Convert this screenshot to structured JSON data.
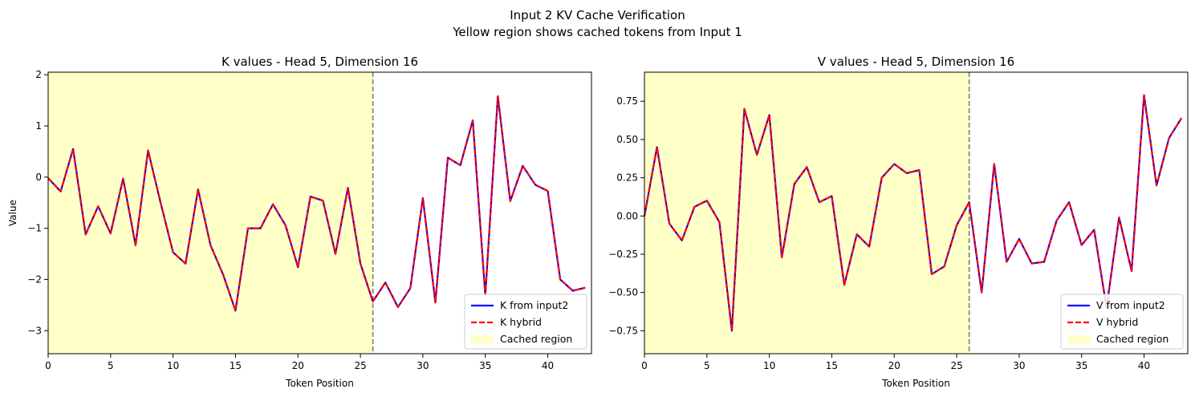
{
  "figure": {
    "suptitle_line1": "Input 2 KV Cache Verification",
    "suptitle_line2": "Yellow region shows cached tokens from Input 1"
  },
  "chart_data": [
    {
      "type": "line",
      "title": "K values - Head 5, Dimension 16",
      "xlabel": "Token Position",
      "ylabel": "Value",
      "xlim": [
        0,
        43.5
      ],
      "ylim": [
        -3.45,
        2.05
      ],
      "xticks": [
        0,
        5,
        10,
        15,
        20,
        25,
        30,
        35,
        40
      ],
      "yticks": [
        2,
        1,
        0,
        -1,
        -2,
        -3
      ],
      "cached_region": [
        0,
        26
      ],
      "cache_boundary": 26,
      "grid": false,
      "legend_position": "lower-right",
      "x": [
        0,
        1,
        2,
        3,
        4,
        5,
        6,
        7,
        8,
        9,
        10,
        11,
        12,
        13,
        14,
        15,
        16,
        17,
        18,
        19,
        20,
        21,
        22,
        23,
        24,
        25,
        26,
        27,
        28,
        29,
        30,
        31,
        32,
        33,
        34,
        35,
        36,
        37,
        38,
        39,
        40,
        41,
        42,
        43
      ],
      "series": [
        {
          "name": "K from input2",
          "color": "#0000ff",
          "style": "solid",
          "values": [
            -0.02,
            -0.28,
            0.55,
            -1.12,
            -0.57,
            -1.1,
            -0.03,
            -1.33,
            0.52,
            -0.5,
            -1.47,
            -1.69,
            -0.24,
            -1.33,
            -1.9,
            -2.61,
            -1.0,
            -1.0,
            -0.53,
            -0.94,
            -1.76,
            -0.38,
            -0.46,
            -1.5,
            -0.21,
            -1.69,
            -2.43,
            -2.06,
            -2.54,
            -2.17,
            -0.41,
            -2.45,
            0.38,
            0.23,
            1.11,
            -2.31,
            1.58,
            -0.47,
            0.22,
            -0.15,
            -0.27,
            -2.0,
            -2.22,
            -2.16
          ]
        },
        {
          "name": "K hybrid",
          "color": "#ff0000",
          "style": "dashed",
          "values": [
            -0.02,
            -0.28,
            0.55,
            -1.12,
            -0.57,
            -1.1,
            -0.03,
            -1.33,
            0.52,
            -0.5,
            -1.47,
            -1.69,
            -0.24,
            -1.33,
            -1.9,
            -2.61,
            -1.0,
            -1.0,
            -0.53,
            -0.94,
            -1.76,
            -0.38,
            -0.46,
            -1.5,
            -0.21,
            -1.69,
            -2.43,
            -2.06,
            -2.54,
            -2.17,
            -0.41,
            -2.45,
            0.38,
            0.23,
            1.11,
            -2.31,
            1.58,
            -0.47,
            0.22,
            -0.15,
            -0.27,
            -2.0,
            -2.22,
            -2.16
          ]
        }
      ],
      "legend": [
        "K from input2",
        "K hybrid",
        "Cached region"
      ]
    },
    {
      "type": "line",
      "title": "V values - Head 5, Dimension 16",
      "xlabel": "Token Position",
      "ylabel": "",
      "xlim": [
        0,
        43.5
      ],
      "ylim": [
        -0.9,
        0.94
      ],
      "xticks": [
        0,
        5,
        10,
        15,
        20,
        25,
        30,
        35,
        40
      ],
      "yticks": [
        0.75,
        0.5,
        0.25,
        0.0,
        -0.25,
        -0.5,
        -0.75
      ],
      "cached_region": [
        0,
        26
      ],
      "cache_boundary": 26,
      "grid": false,
      "legend_position": "lower-right",
      "x": [
        0,
        1,
        2,
        3,
        4,
        5,
        6,
        7,
        8,
        9,
        10,
        11,
        12,
        13,
        14,
        15,
        16,
        17,
        18,
        19,
        20,
        21,
        22,
        23,
        24,
        25,
        26,
        27,
        28,
        29,
        30,
        31,
        32,
        33,
        34,
        35,
        36,
        37,
        38,
        39,
        40,
        41,
        42,
        43
      ],
      "series": [
        {
          "name": "V from input2",
          "color": "#0000ff",
          "style": "solid",
          "values": [
            0.0,
            0.45,
            -0.05,
            -0.16,
            0.06,
            0.1,
            -0.04,
            -0.75,
            0.7,
            0.4,
            0.66,
            -0.27,
            0.21,
            0.32,
            0.09,
            0.13,
            -0.45,
            -0.12,
            -0.2,
            0.25,
            0.34,
            0.28,
            0.3,
            -0.38,
            -0.33,
            -0.06,
            0.09,
            -0.5,
            0.34,
            -0.3,
            -0.15,
            -0.31,
            -0.3,
            -0.03,
            0.09,
            -0.19,
            -0.09,
            -0.6,
            -0.01,
            -0.36,
            0.79,
            0.2,
            0.51,
            0.64
          ]
        },
        {
          "name": "V hybrid",
          "color": "#ff0000",
          "style": "dashed",
          "values": [
            0.0,
            0.45,
            -0.05,
            -0.16,
            0.06,
            0.1,
            -0.04,
            -0.75,
            0.7,
            0.4,
            0.66,
            -0.27,
            0.21,
            0.32,
            0.09,
            0.13,
            -0.45,
            -0.12,
            -0.2,
            0.25,
            0.34,
            0.28,
            0.3,
            -0.38,
            -0.33,
            -0.06,
            0.09,
            -0.5,
            0.34,
            -0.3,
            -0.15,
            -0.31,
            -0.3,
            -0.03,
            0.09,
            -0.19,
            -0.09,
            -0.6,
            -0.01,
            -0.36,
            0.79,
            0.2,
            0.51,
            0.64
          ]
        }
      ],
      "legend": [
        "V from input2",
        "V hybrid",
        "Cached region"
      ]
    }
  ]
}
